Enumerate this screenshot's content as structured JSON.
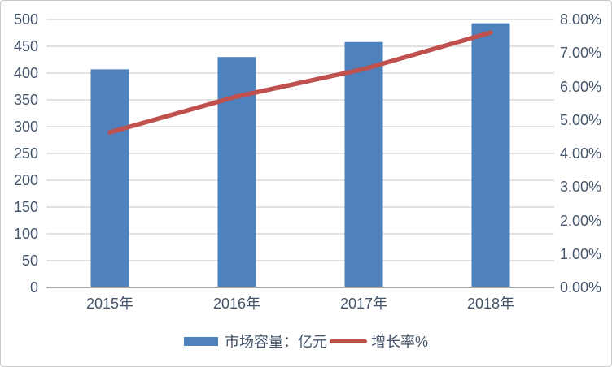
{
  "chart_data": {
    "type": "combo",
    "title": "",
    "categories": [
      "2015年",
      "2016年",
      "2017年",
      "2018年"
    ],
    "series": [
      {
        "name": "市场容量：亿元",
        "type": "bar",
        "axis": "left",
        "color": "#4F81BD",
        "values": [
          407,
          430,
          458,
          493
        ]
      },
      {
        "name": "增长率%",
        "type": "line",
        "axis": "right",
        "color": "#C0504D",
        "values": [
          4.63,
          5.7,
          6.52,
          7.61
        ]
      }
    ],
    "left_axis": {
      "min": 0,
      "max": 500,
      "step": 50,
      "tick_labels": [
        "0",
        "50",
        "100",
        "150",
        "200",
        "250",
        "300",
        "350",
        "400",
        "450",
        "500"
      ]
    },
    "right_axis": {
      "min": 0,
      "max": 8,
      "step": 1,
      "tick_labels": [
        "0.00%",
        "1.00%",
        "2.00%",
        "3.00%",
        "4.00%",
        "5.00%",
        "6.00%",
        "7.00%",
        "8.00%"
      ]
    },
    "grid": true,
    "legend_position": "bottom",
    "gridline_color": "#D9D9D9",
    "axis_line_color": "#A6A6A6",
    "label_color": "#44546A",
    "background_color": "#FFFFFF"
  }
}
